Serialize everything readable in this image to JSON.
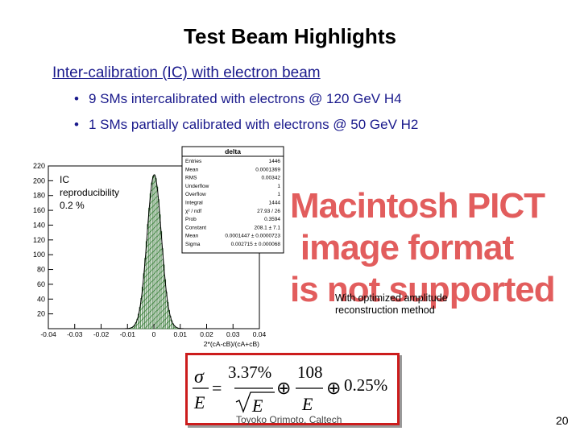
{
  "slide": {
    "title": "Test Beam Highlights",
    "subtitle": "Inter-calibration (IC) with electron beam",
    "bullets": [
      {
        "marker": "•",
        "text": "9 SMs intercalibrated with electrons @ 120 GeV H4"
      },
      {
        "marker": "•",
        "text": "1 SMs partially calibrated with electrons @ 50 GeV H2"
      }
    ],
    "placeholder_lines": [
      "Macintosh PICT",
      "image format",
      "is not supported"
    ],
    "note_lines": [
      "With optimized amplitude",
      "reconstruction method"
    ],
    "footer": "Toyoko Orimoto, Caltech",
    "page_number": "20"
  },
  "chart_data": {
    "type": "histogram",
    "title": "delta",
    "xlabel": "2*(cA-cB)/(cA+cB)",
    "xlim": [
      -0.04,
      0.04
    ],
    "ylim": [
      0,
      220
    ],
    "xticks": [
      "-0.04",
      "-0.03",
      "-0.02",
      "-0.01",
      "0",
      "0.01",
      "0.02",
      "0.03",
      "0.04"
    ],
    "yticks": [
      "20",
      "40",
      "60",
      "80",
      "100",
      "120",
      "140",
      "160",
      "180",
      "200",
      "220"
    ],
    "fit": {
      "function": "gaussian",
      "mean": 0.0001447,
      "sigma": 0.002715
    },
    "annotation": [
      "IC",
      "reproducibility",
      "0.2 %"
    ],
    "fill_color": "#3f8f3f",
    "stats": [
      {
        "label": "Entries",
        "value": "1446"
      },
      {
        "label": "Mean",
        "value": "0.0001369"
      },
      {
        "label": "RMS",
        "value": "0.00342"
      },
      {
        "label": "Underflow",
        "value": "1"
      },
      {
        "label": "Overflow",
        "value": "1"
      },
      {
        "label": "Integral",
        "value": "1444"
      },
      {
        "label": "χ² / ndf",
        "value": "27.93 / 26"
      },
      {
        "label": "Prob",
        "value": "0.3594"
      },
      {
        "label": "Constant",
        "value": "208.1 ± 7.1"
      },
      {
        "label": "Mean",
        "value": "0.0001447 ± 0.0000723"
      },
      {
        "label": "Sigma",
        "value": "0.002715 ± 0.000068"
      }
    ]
  },
  "formula": {
    "sigma": "σ",
    "equals": "=",
    "E": "E",
    "term1": "3.37%",
    "sqrtE": "E",
    "oplus": "⊕",
    "term2": "108",
    "term3": "0.25%"
  }
}
